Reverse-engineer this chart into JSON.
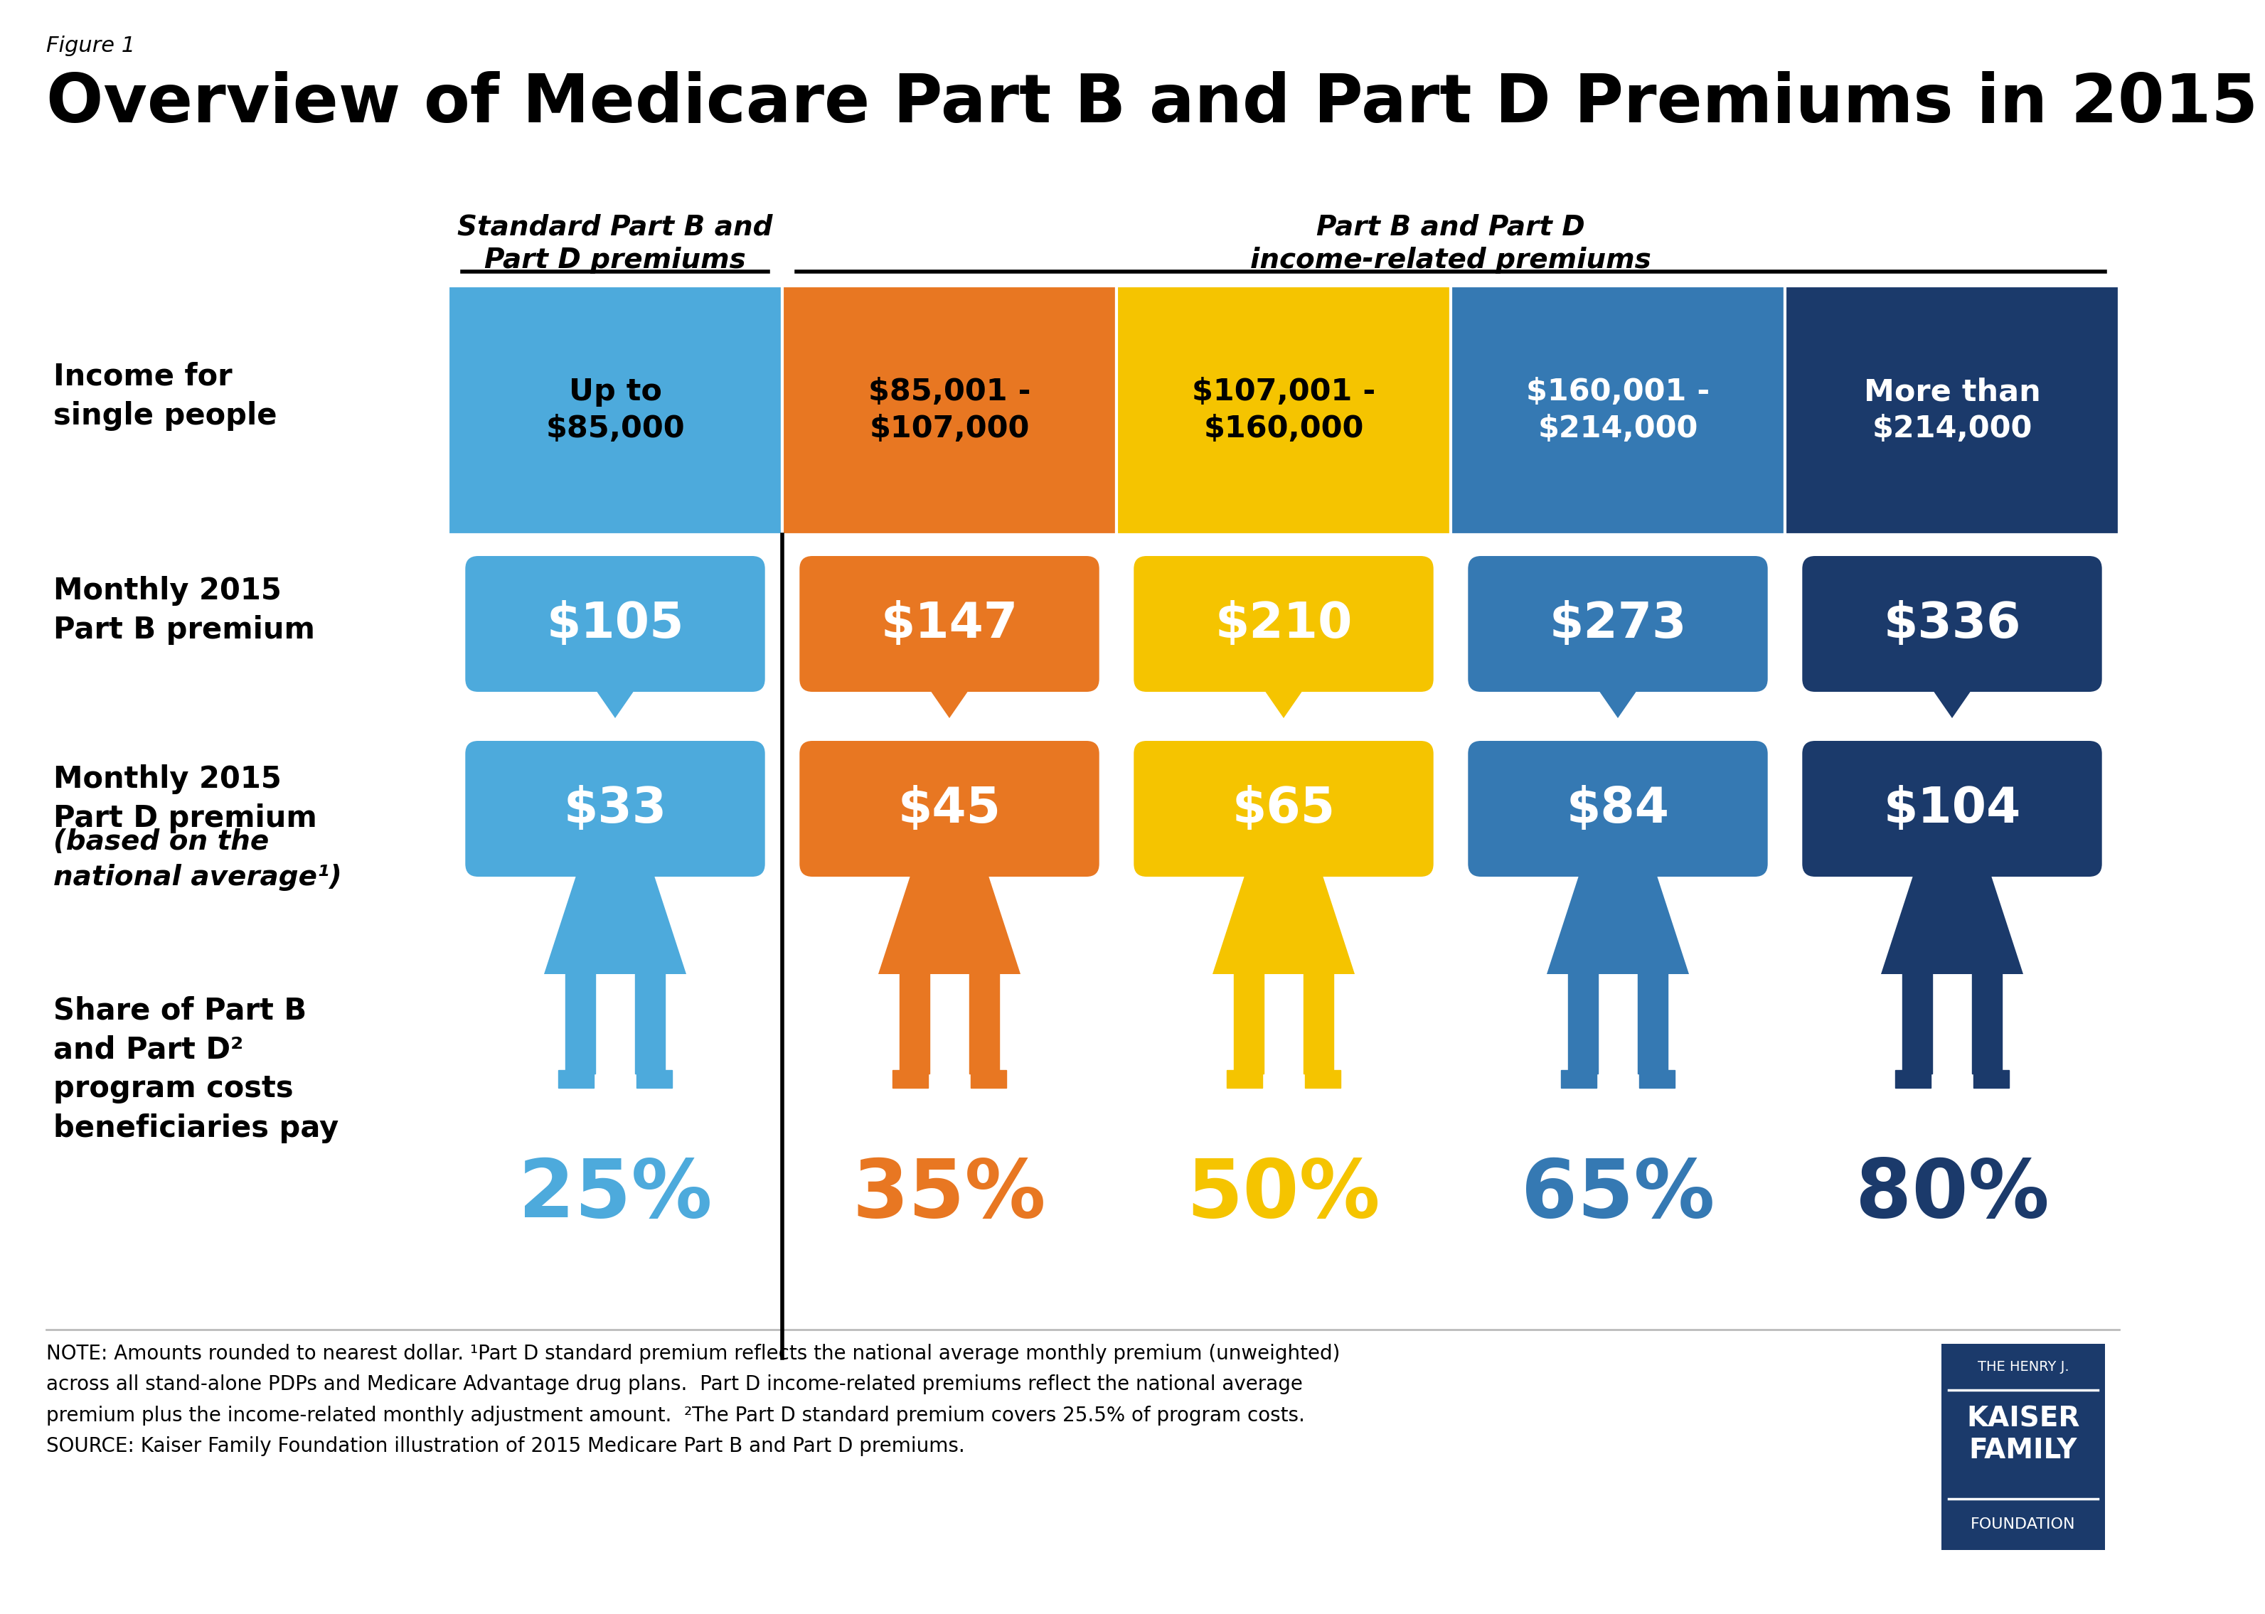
{
  "figure_label": "Figure 1",
  "title": "Overview of Medicare Part B and Part D Premiums in 2015",
  "header_left": "Standard Part B and\nPart D premiums",
  "header_right": "Part B and Part D\nincome-related premiums",
  "income_label": "Income for\nsingle people",
  "income_brackets": [
    "Up to\n$85,000",
    "$85,001 -\n$107,000",
    "$107,001 -\n$160,000",
    "$160,001 -\n$214,000",
    "More than\n$214,000"
  ],
  "col_colors": [
    "#4DAADC",
    "#E87722",
    "#F5C400",
    "#3579B3",
    "#1B3A6B"
  ],
  "col_text_colors": [
    "#000000",
    "#000000",
    "#000000",
    "#ffffff",
    "#ffffff"
  ],
  "part_b_label_line1": "Monthly 2015",
  "part_b_label_line2": "Part B premium",
  "part_b_values": [
    "$105",
    "$147",
    "$210",
    "$273",
    "$336"
  ],
  "part_d_label_line1": "Monthly 2015",
  "part_d_label_line2": "Part D premium",
  "part_d_label_line3": "(based on the",
  "part_d_label_line4": "national average¹)",
  "part_d_values": [
    "$33",
    "$45",
    "$65",
    "$84",
    "$104"
  ],
  "share_label_line1": "Share of Part B",
  "share_label_line2": "and Part D²",
  "share_label_line3": "program costs",
  "share_label_line4": "beneficiaries pay",
  "share_values": [
    "25%",
    "35%",
    "50%",
    "65%",
    "80%"
  ],
  "note_text1": "NOTE: Amounts rounded to nearest dollar. ¹Part D standard premium reflects the national average monthly premium (unweighted)",
  "note_text2": "across all stand-alone PDPs and Medicare Advantage drug plans.  Part D income-related premiums reflect the national average",
  "note_text3": "premium plus the income-related monthly adjustment amount.  ²The Part D standard premium covers 25.5% of program costs.",
  "note_text4": "SOURCE: Kaiser Family Foundation illustration of 2015 Medicare Part B and Part D premiums.",
  "kff_color": "#1B3A6B",
  "bg_color": "#ffffff"
}
